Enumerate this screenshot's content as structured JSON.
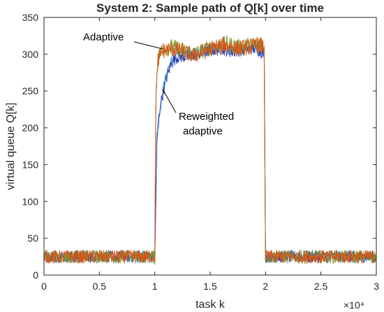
{
  "chart_data": {
    "type": "line",
    "title": "System 2: Sample path of Q[k] over time",
    "xlabel": "task k",
    "ylabel": "virtual queue Q[k]",
    "x_exponent_label": "×10⁴",
    "xlim": [
      0,
      30000
    ],
    "ylim": [
      0,
      350
    ],
    "xticks": [
      0,
      5000,
      10000,
      15000,
      20000,
      25000,
      30000
    ],
    "xtick_labels": [
      "0",
      "0.5",
      "1",
      "1.5",
      "2",
      "2.5",
      "3"
    ],
    "yticks": [
      0,
      50,
      100,
      150,
      200,
      250,
      300,
      350
    ],
    "ytick_labels": [
      "0",
      "50",
      "100",
      "150",
      "200",
      "250",
      "300",
      "350"
    ],
    "grid": false,
    "legend": "none",
    "annotations": [
      {
        "text": "Adaptive",
        "points_to": {
          "x": 10500,
          "y": 312
        }
      },
      {
        "text": "Reweighted",
        "text2": "adaptive",
        "points_to": {
          "x": 10500,
          "y": 255
        }
      }
    ],
    "series": [
      {
        "color": "#4f9fd6",
        "segments": [
          {
            "x": [
              0,
              10000
            ],
            "y": [
              25,
              25
            ],
            "noise": 8
          },
          {
            "x": [
              10000,
              10200,
              10500,
              11000,
              11500,
              12000,
              13000,
              14000,
              15000,
              16000,
              17000,
              18000,
              19000,
              19900
            ],
            "y": [
              20,
              190,
              235,
              270,
              292,
              300,
              298,
              302,
              308,
              310,
              306,
              308,
              309,
              305
            ],
            "noise": 8
          },
          {
            "x": [
              20000,
              30000
            ],
            "y": [
              25,
              25
            ],
            "noise": 8
          }
        ]
      },
      {
        "color": "#2a45b5",
        "segments": [
          {
            "x": [
              0,
              10000
            ],
            "y": [
              25,
              25
            ],
            "noise": 8
          },
          {
            "x": [
              10000,
              10200,
              10500,
              11000,
              11500,
              12000,
              13000,
              14000,
              15000,
              16000,
              17000,
              18000,
              19000,
              19900
            ],
            "y": [
              20,
              180,
              230,
              265,
              288,
              296,
              297,
              300,
              305,
              307,
              303,
              306,
              308,
              300
            ],
            "noise": 8
          },
          {
            "x": [
              20000,
              30000
            ],
            "y": [
              25,
              25
            ],
            "noise": 8
          }
        ]
      },
      {
        "color": "#7a9a2a",
        "segments": [
          {
            "x": [
              0,
              10000
            ],
            "y": [
              25,
              25
            ],
            "noise": 9
          },
          {
            "x": [
              10000,
              10100,
              10300,
              10700,
              11500,
              12500,
              13500,
              14500,
              15500,
              16500,
              17500,
              18500,
              19500,
              19900
            ],
            "y": [
              20,
              250,
              295,
              308,
              310,
              306,
              300,
              306,
              312,
              314,
              310,
              312,
              315,
              310
            ],
            "noise": 11
          },
          {
            "x": [
              20000,
              30000
            ],
            "y": [
              25,
              25
            ],
            "noise": 9
          }
        ]
      },
      {
        "color": "#d95319",
        "segments": [
          {
            "x": [
              0,
              10000
            ],
            "y": [
              25,
              25
            ],
            "noise": 9
          },
          {
            "x": [
              10000,
              10100,
              10300,
              10700,
              11500,
              12500,
              13500,
              14500,
              15500,
              16500,
              17500,
              18500,
              19500,
              19900
            ],
            "y": [
              20,
              245,
              292,
              305,
              307,
              304,
              298,
              304,
              310,
              312,
              308,
              310,
              313,
              308
            ],
            "noise": 11
          },
          {
            "x": [
              20000,
              30000
            ],
            "y": [
              25,
              25
            ],
            "noise": 9
          }
        ]
      }
    ]
  }
}
